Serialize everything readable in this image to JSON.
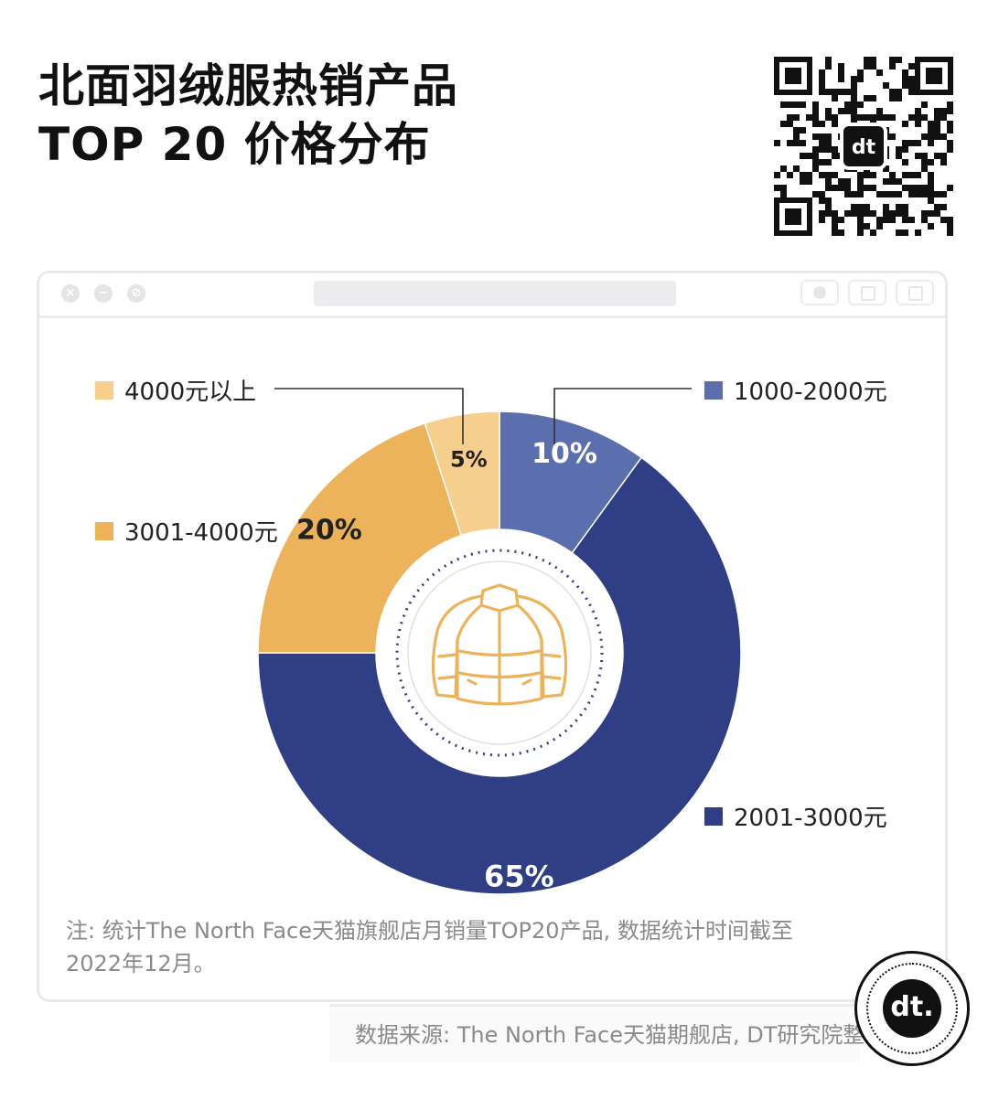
{
  "title_line1": "北面羽绒服热销产品",
  "title_line2": "TOP 20 价格分布",
  "chart_data": {
    "type": "pie",
    "donut": true,
    "categories": [
      "1000-2000元",
      "2001-3000元",
      "3001-4000元",
      "4000元以上"
    ],
    "values": [
      10,
      65,
      20,
      5
    ],
    "value_labels": [
      "10%",
      "65%",
      "20%",
      "5%"
    ],
    "colors": [
      "#5b6fae",
      "#2f3e85",
      "#ecb35a",
      "#f6cf8e"
    ],
    "legend_placement": "around"
  },
  "note": "注: 统计The North Face天猫旗舰店月销量TOP20产品, 数据统计时间截至2022年12月。",
  "source": "数据来源: The North Face天猫期舰店, DT研究院整理",
  "logo_text": "dt."
}
